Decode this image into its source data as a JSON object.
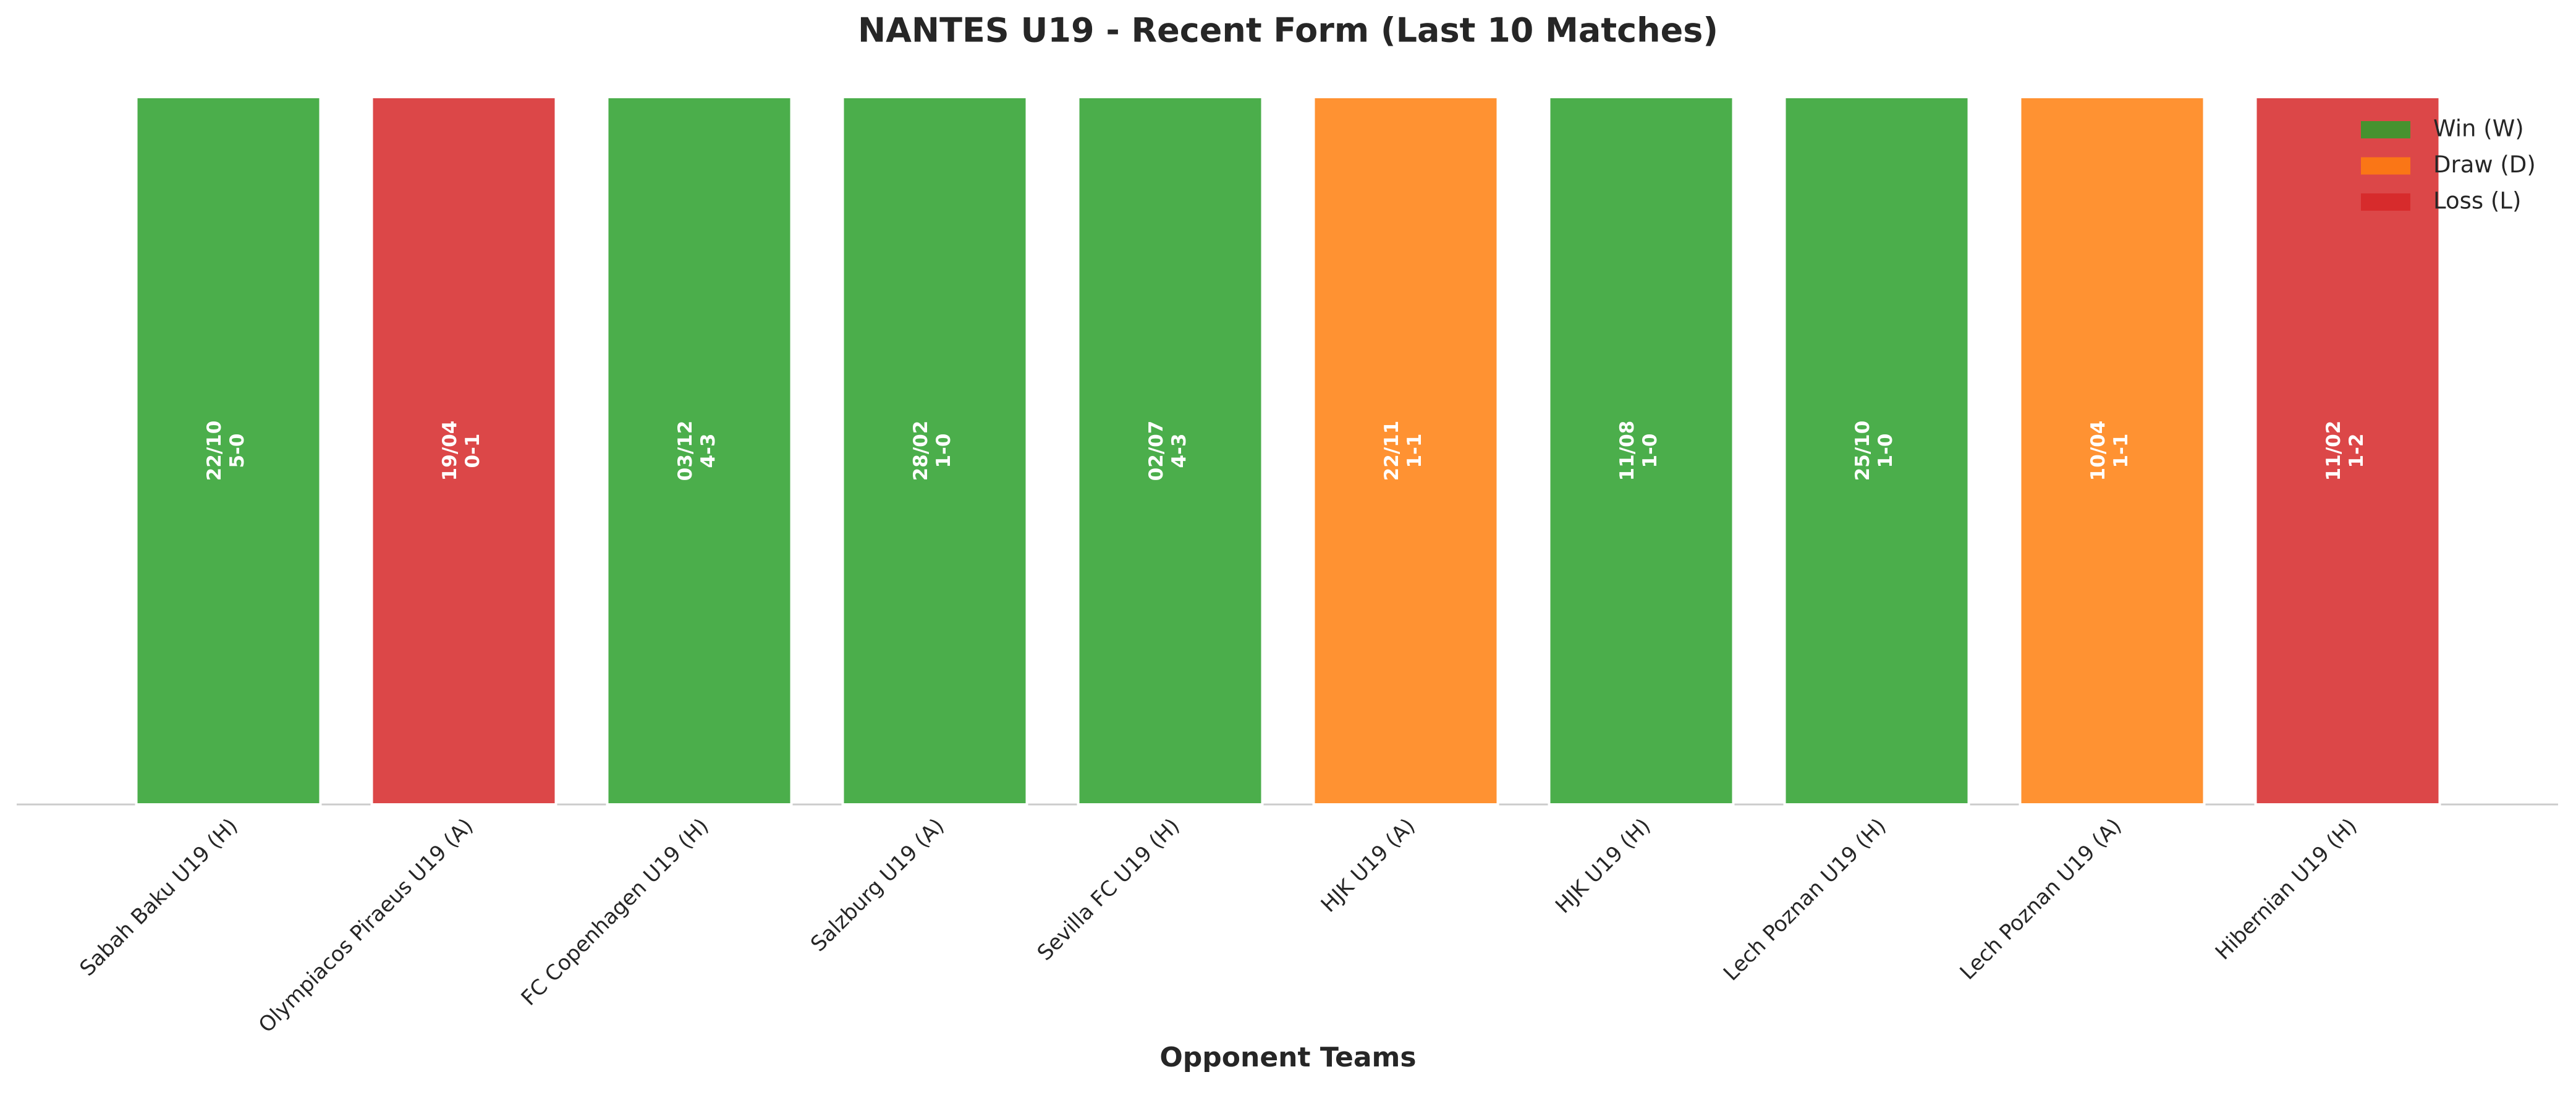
{
  "chart_data": {
    "type": "bar",
    "title": "NANTES U19 - Recent Form (Last 10 Matches)",
    "x_label": "Opponent Teams",
    "categories": [
      "Sabah Baku U19 (H)",
      "Olympiacos Piraeus U19 (A)",
      "FC Copenhagen U19 (H)",
      "Salzburg U19 (A)",
      "Sevilla FC U19 (H)",
      "HJK U19 (A)",
      "HJK U19 (H)",
      "Lech Poznan U19 (H)",
      "Lech Poznan U19 (A)",
      "Hibernian U19 (H)"
    ],
    "values": [
      1,
      1,
      1,
      1,
      1,
      1,
      1,
      1,
      1,
      1
    ],
    "ylim": [
      0,
      1
    ],
    "dates": [
      "22/10",
      "19/04",
      "03/12",
      "28/02",
      "02/07",
      "22/11",
      "11/08",
      "25/10",
      "10/04",
      "11/02"
    ],
    "scores": [
      "5-0",
      "0-1",
      "4-3",
      "1-0",
      "4-3",
      "1-1",
      "1-0",
      "1-0",
      "1-1",
      "1-2"
    ],
    "bar_colors": [
      "#2ca02c",
      "#d62728",
      "#2ca02c",
      "#2ca02c",
      "#2ca02c",
      "#ff7f0e",
      "#2ca02c",
      "#2ca02c",
      "#ff7f0e",
      "#d62728"
    ],
    "legend": {
      "position": "upper right",
      "entries": [
        {
          "name": "Win (W)",
          "color": "#2ca02c"
        },
        {
          "name": "Draw (D)",
          "color": "#ff7f0e"
        },
        {
          "name": "Loss (L)",
          "color": "#d62728"
        }
      ]
    }
  }
}
